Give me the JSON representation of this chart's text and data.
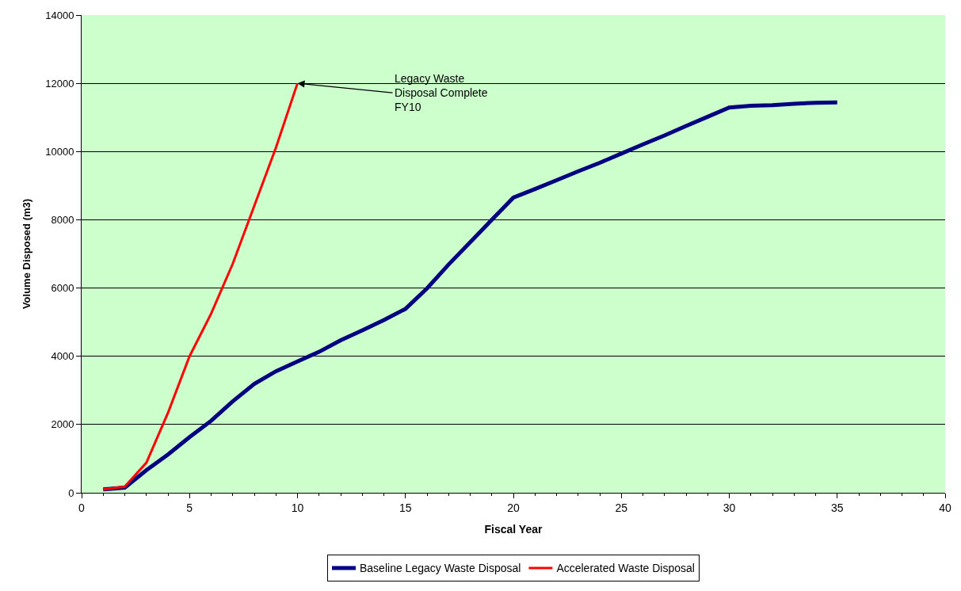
{
  "chart_data": {
    "type": "line",
    "xlabel": "Fiscal Year",
    "ylabel": "Volume Disposed (m3)",
    "xlim": [
      0,
      40
    ],
    "xticks": [
      0,
      5,
      10,
      15,
      20,
      25,
      30,
      35,
      40
    ],
    "ylim": [
      0,
      14000
    ],
    "yticks": [
      0,
      2000,
      4000,
      6000,
      8000,
      10000,
      12000,
      14000
    ],
    "grid": "y",
    "legend": "bottom",
    "marker": "none",
    "line_style": "solid",
    "series": [
      {
        "name": "Baseline Legacy Waste Disposal",
        "color": "#000080",
        "x": [
          1,
          2,
          3,
          4,
          5,
          6,
          7,
          8,
          9,
          10,
          11,
          12,
          13,
          14,
          15,
          16,
          17,
          18,
          19,
          20,
          21,
          22,
          23,
          24,
          25,
          26,
          27,
          28,
          29,
          30,
          31,
          32,
          33,
          34,
          35
        ],
        "values": [
          100,
          150,
          660,
          1120,
          1630,
          2110,
          2680,
          3190,
          3560,
          3850,
          4130,
          4470,
          4760,
          5060,
          5390,
          5990,
          6690,
          7340,
          8000,
          8650,
          8900,
          9160,
          9420,
          9670,
          9940,
          10210,
          10470,
          10750,
          11020,
          11290,
          11340,
          11360,
          11400,
          11430,
          11440
        ]
      },
      {
        "name": "Accelerated Waste Disposal",
        "color": "#ff0000",
        "x": [
          1,
          2,
          3,
          4,
          5,
          6,
          7,
          8,
          9,
          10
        ],
        "values": [
          100,
          180,
          880,
          2340,
          4000,
          5250,
          6710,
          8410,
          10110,
          12000
        ]
      }
    ],
    "annotations": [
      {
        "text": "Legacy Waste\nDisposal Complete\nFY10",
        "x": 10,
        "y": 12000
      }
    ]
  }
}
